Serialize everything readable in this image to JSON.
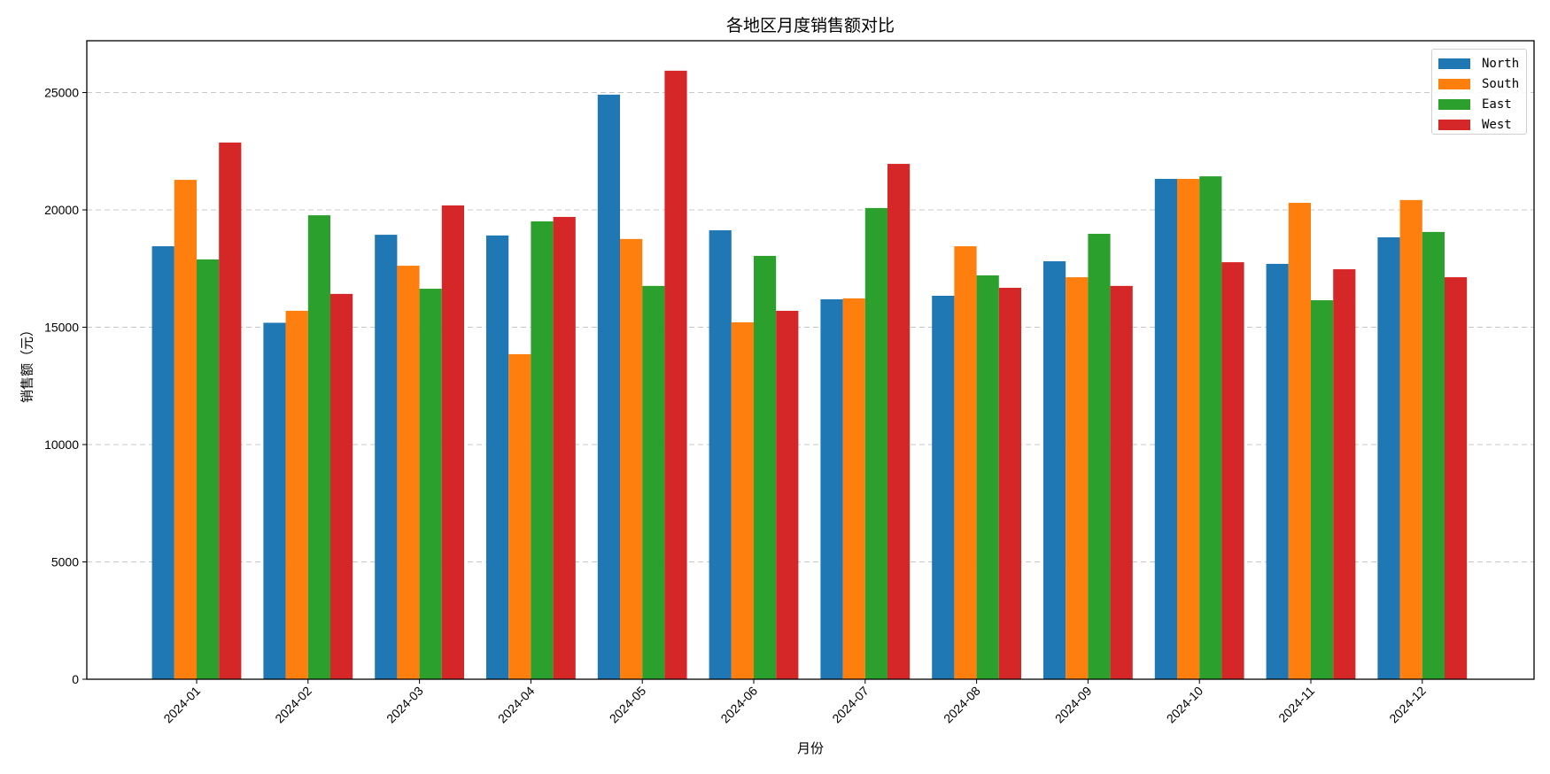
{
  "chart_data": {
    "type": "bar",
    "title": "各地区月度销售额对比",
    "xlabel": "月份",
    "ylabel": "销售额（元）",
    "categories": [
      "2024-01",
      "2024-02",
      "2024-03",
      "2024-04",
      "2024-05",
      "2024-06",
      "2024-07",
      "2024-08",
      "2024-09",
      "2024-10",
      "2024-11",
      "2024-12"
    ],
    "series": [
      {
        "name": "North",
        "color": "#1f77b4",
        "values": [
          18450,
          15190,
          18940,
          18910,
          24910,
          19130,
          16190,
          16340,
          17810,
          21320,
          17700,
          18830
        ]
      },
      {
        "name": "South",
        "color": "#ff7f0e",
        "values": [
          21280,
          15700,
          17620,
          13850,
          18760,
          15210,
          16230,
          18450,
          17130,
          21320,
          20300,
          20420
        ]
      },
      {
        "name": "East",
        "color": "#2ca02c",
        "values": [
          17890,
          19770,
          16640,
          19510,
          16760,
          18040,
          20080,
          17210,
          18980,
          21430,
          16150,
          19060
        ]
      },
      {
        "name": "West",
        "color": "#d62728",
        "values": [
          22870,
          16420,
          20190,
          19700,
          25930,
          15700,
          21960,
          16680,
          16760,
          17770,
          17470,
          17130
        ]
      }
    ],
    "ylim": [
      0,
      27200
    ],
    "yticks": [
      0,
      5000,
      10000,
      15000,
      20000,
      25000
    ],
    "grid": {
      "y": true,
      "style": "dashed"
    },
    "legend_position": "upper right",
    "xtick_rotation": 45
  }
}
